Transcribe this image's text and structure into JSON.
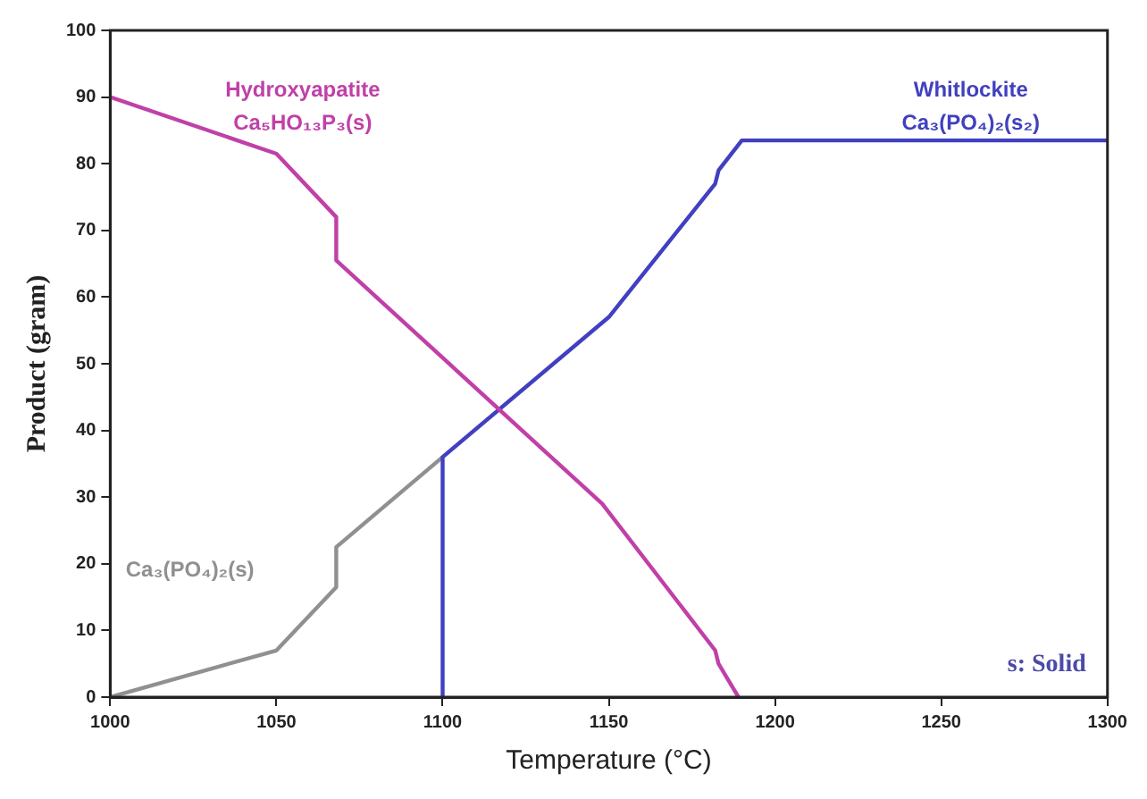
{
  "chart_data": {
    "type": "line",
    "xlabel": "Temperature (°C)",
    "ylabel": "Product (gram)",
    "xlim": [
      1000,
      1300
    ],
    "xticks": [
      1000,
      1050,
      1100,
      1150,
      1200,
      1250,
      1300
    ],
    "ylim": [
      0,
      100
    ],
    "yticks": [
      0,
      10,
      20,
      30,
      40,
      50,
      60,
      70,
      80,
      90,
      100
    ],
    "grid": false,
    "legend": false,
    "marker": "none",
    "line_style": "solid",
    "series": [
      {
        "name": "Hydroxyapatite",
        "color": "#c040a8",
        "x": [
          1000,
          1050,
          1068,
          1068,
          1148,
          1182,
          1183,
          1189
        ],
        "values": [
          90,
          81.5,
          72,
          65.5,
          29,
          7,
          5,
          0
        ]
      },
      {
        "name": "Whitlockite",
        "color": "#4040c0",
        "x": [
          1100,
          1100,
          1150,
          1182,
          1183,
          1190,
          1300
        ],
        "values": [
          0,
          36,
          57,
          77,
          79,
          83.5,
          83.5
        ]
      },
      {
        "name": "Ca₃(PO₄)₂(s)",
        "color": "#909090",
        "x": [
          1000,
          1050,
          1068,
          1068,
          1100
        ],
        "values": [
          0,
          7,
          16.5,
          22.5,
          36
        ]
      }
    ],
    "annotations": [
      "Ca₅HO₁₃P₃(s)",
      "Ca₃(PO₄)₂(s₂)",
      "s: Solid"
    ]
  }
}
